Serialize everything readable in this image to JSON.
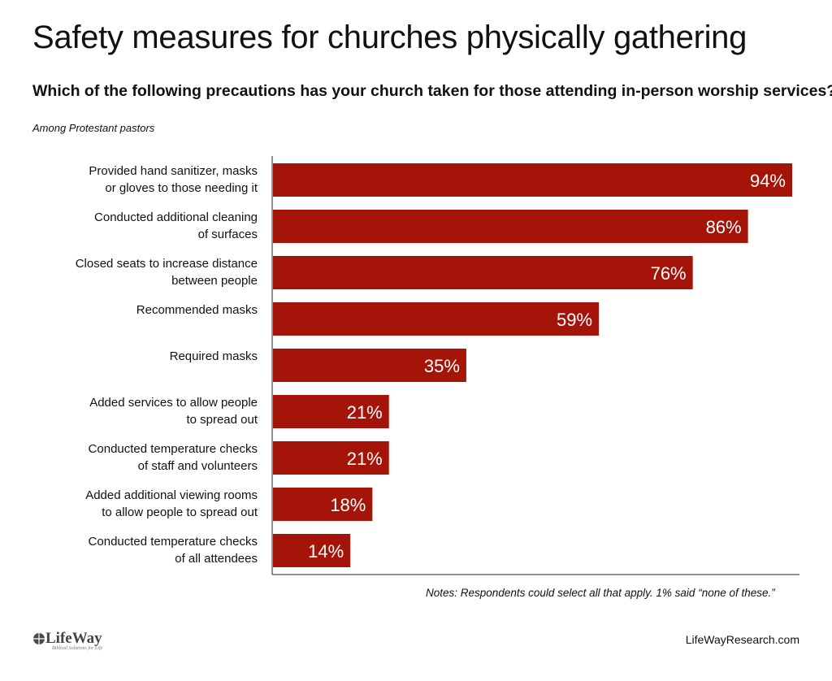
{
  "header": {
    "title": "Safety measures for churches physically gathering",
    "subtitle": "Which of the following precautions has your church taken for those attending in-person worship services?",
    "population": "Among Protestant pastors"
  },
  "chart_data": {
    "type": "bar",
    "orientation": "horizontal",
    "categories": [
      [
        "Provided hand sanitizer, masks",
        "or gloves to those needing it"
      ],
      [
        "Conducted additional cleaning",
        "of surfaces"
      ],
      [
        "Closed seats to increase distance",
        "between people"
      ],
      [
        "Recommended masks"
      ],
      [
        "Required masks"
      ],
      [
        "Added services to allow people",
        "to spread out"
      ],
      [
        "Conducted temperature checks",
        "of staff and volunteers"
      ],
      [
        "Added additional viewing rooms",
        "to allow people to spread out"
      ],
      [
        "Conducted temperature checks",
        "of all attendees"
      ]
    ],
    "values": [
      94,
      86,
      76,
      59,
      35,
      21,
      21,
      18,
      14
    ],
    "value_labels": [
      "94%",
      "86%",
      "76%",
      "59%",
      "35%",
      "21%",
      "21%",
      "18%",
      "14%"
    ],
    "xlim": [
      0,
      100
    ],
    "bar_color": "#a51409",
    "label_color": "#ffffff",
    "grid": false
  },
  "footer": {
    "note": "Notes: Respondents could select all that apply. 1% said “none of these.”",
    "logo_text": "LifeWay",
    "logo_tagline": "Biblical Solutions for Life",
    "site": "LifeWayResearch.com"
  }
}
